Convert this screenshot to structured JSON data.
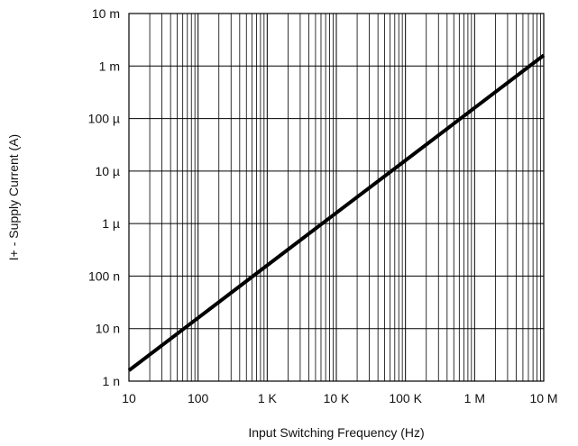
{
  "chart_data": {
    "type": "line",
    "title": "",
    "xlabel": "Input Switching Frequency (Hz)",
    "ylabel": "I+ - Supply Current (A)",
    "x_scale": "log",
    "y_scale": "log",
    "xlim": [
      10,
      10000000
    ],
    "ylim": [
      1e-09,
      0.01
    ],
    "grid": true,
    "x_ticks": [
      {
        "value": 10,
        "label": "10"
      },
      {
        "value": 100,
        "label": "100"
      },
      {
        "value": 1000,
        "label": "1 K"
      },
      {
        "value": 10000,
        "label": "10 K"
      },
      {
        "value": 100000,
        "label": "100 K"
      },
      {
        "value": 1000000,
        "label": "1 M"
      },
      {
        "value": 10000000,
        "label": "10 M"
      }
    ],
    "y_ticks": [
      {
        "value": 0.01,
        "label": "10 m"
      },
      {
        "value": 0.001,
        "label": "1 m"
      },
      {
        "value": 0.0001,
        "label": "100 µ"
      },
      {
        "value": 1e-05,
        "label": "10 µ"
      },
      {
        "value": 1e-06,
        "label": "1 µ"
      },
      {
        "value": 1e-07,
        "label": "100 n"
      },
      {
        "value": 1e-08,
        "label": "10 n"
      },
      {
        "value": 1e-09,
        "label": "1 n"
      }
    ],
    "series": [
      {
        "x": [
          10,
          100,
          1000,
          10000,
          100000,
          1000000,
          10000000
        ],
        "y": [
          1.6e-09,
          1.6e-08,
          1.6e-07,
          1.6e-06,
          1.6e-05,
          0.00016,
          0.0016
        ]
      }
    ],
    "colors": {
      "line": "#000000",
      "grid": "#000000",
      "frame": "#000000"
    }
  }
}
